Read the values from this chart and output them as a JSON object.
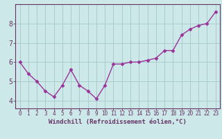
{
  "x": [
    0,
    1,
    2,
    3,
    4,
    5,
    6,
    7,
    8,
    9,
    10,
    11,
    12,
    13,
    14,
    15,
    16,
    17,
    18,
    19,
    20,
    21,
    22,
    23
  ],
  "y": [
    6.0,
    5.4,
    5.0,
    4.5,
    4.2,
    4.8,
    5.6,
    4.8,
    4.5,
    4.1,
    4.8,
    5.9,
    5.9,
    6.0,
    6.0,
    6.1,
    6.2,
    6.6,
    6.6,
    7.4,
    7.7,
    7.9,
    8.0,
    8.6
  ],
  "line_color": "#993399",
  "marker": "D",
  "marker_size": 2.5,
  "bg_color": "#cce8e8",
  "grid_color": "#aacccc",
  "axis_color": "#663366",
  "tick_color": "#663366",
  "xlabel": "Windchill (Refroidissement éolien,°C)",
  "xlabel_fontsize": 6.5,
  "ylabel_ticks": [
    4,
    5,
    6,
    7,
    8
  ],
  "ylim": [
    3.6,
    9.0
  ],
  "xlim": [
    -0.5,
    23.5
  ],
  "x_tick_fontsize": 5.5,
  "y_tick_fontsize": 7,
  "linewidth": 1.0
}
